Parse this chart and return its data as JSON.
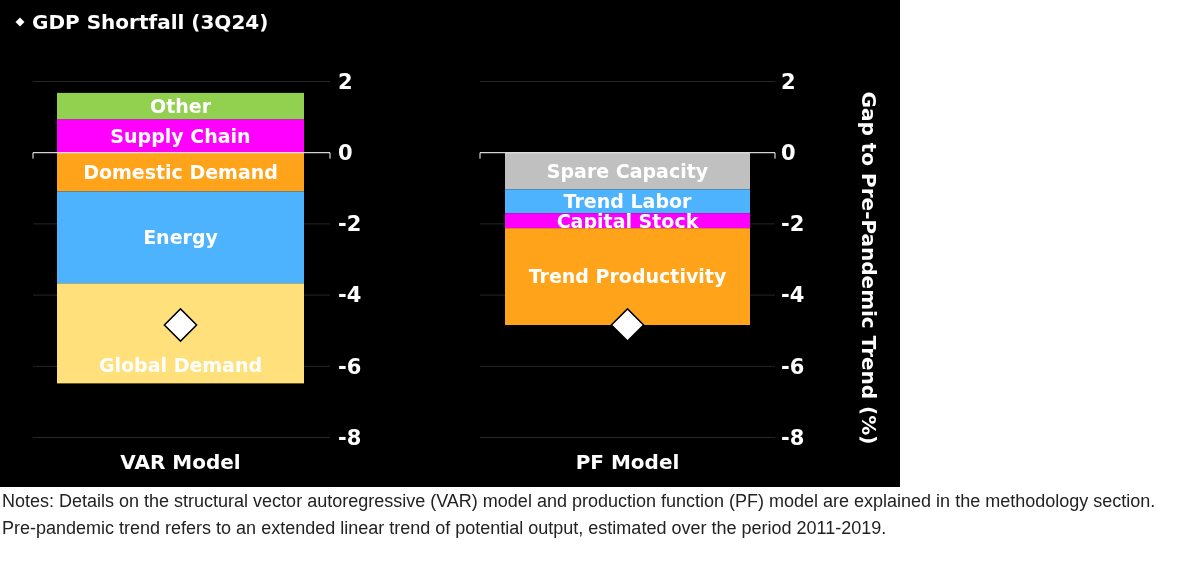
{
  "chart_data": [
    {
      "type": "bar",
      "stacked": true,
      "categories": [
        "VAR Model"
      ],
      "ylim": [
        -8,
        2
      ],
      "yticks": [
        2,
        0,
        -2,
        -4,
        -6,
        -8
      ],
      "grid": "y",
      "legend": "top left",
      "marker": "diamond",
      "ref_lines": [
        {
          "axis": "y",
          "value": 0,
          "color": "#ffffff"
        }
      ],
      "series": [
        {
          "name": "Supply Chain",
          "color": "#ff00ff",
          "values": [
            0.94
          ]
        },
        {
          "name": "Other",
          "color": "#92d050",
          "values": [
            0.74
          ]
        },
        {
          "name": "Domestic Demand",
          "color": "#ffa31a",
          "values": [
            -1.09
          ]
        },
        {
          "name": "Energy",
          "color": "#4db3ff",
          "values": [
            -2.58
          ]
        },
        {
          "name": "Global Demand",
          "color": "#ffe07a",
          "values": [
            -2.81
          ]
        },
        {
          "type": "scatter",
          "name": "GDP Shortfall (3Q24)",
          "color": "#ffffff",
          "values": [
            -4.84
          ]
        }
      ]
    },
    {
      "type": "bar",
      "stacked": true,
      "categories": [
        "PF Model"
      ],
      "ylim": [
        -8,
        2
      ],
      "yticks": [
        2,
        0,
        -2,
        -4,
        -6,
        -8
      ],
      "grid": "y",
      "marker": "diamond",
      "ylabel": "Gap to Pre-Pandemic Trend (%)",
      "ref_lines": [
        {
          "axis": "y",
          "value": 0,
          "color": "#ffffff"
        }
      ],
      "annotations": [
        "Notes: Details on the structural vector autoregressive (VAR) model and production function (PF) model are explained in the methodology section. Pre-pandemic trend refers to an extended linear trend of potential output, estimated over the period 2011-2019."
      ],
      "series": [
        {
          "name": "Spare Capacity",
          "color": "#c0c0c0",
          "values": [
            -1.03
          ]
        },
        {
          "name": "Trend Labor",
          "color": "#4db3ff",
          "values": [
            -0.67
          ]
        },
        {
          "name": "Capital Stock",
          "color": "#ff00ff",
          "values": [
            -0.42
          ]
        },
        {
          "name": "Trend Productivity",
          "color": "#ffa31a",
          "values": [
            -2.72
          ]
        },
        {
          "type": "scatter",
          "color": "#ffffff",
          "values": [
            -4.84
          ]
        }
      ]
    }
  ]
}
